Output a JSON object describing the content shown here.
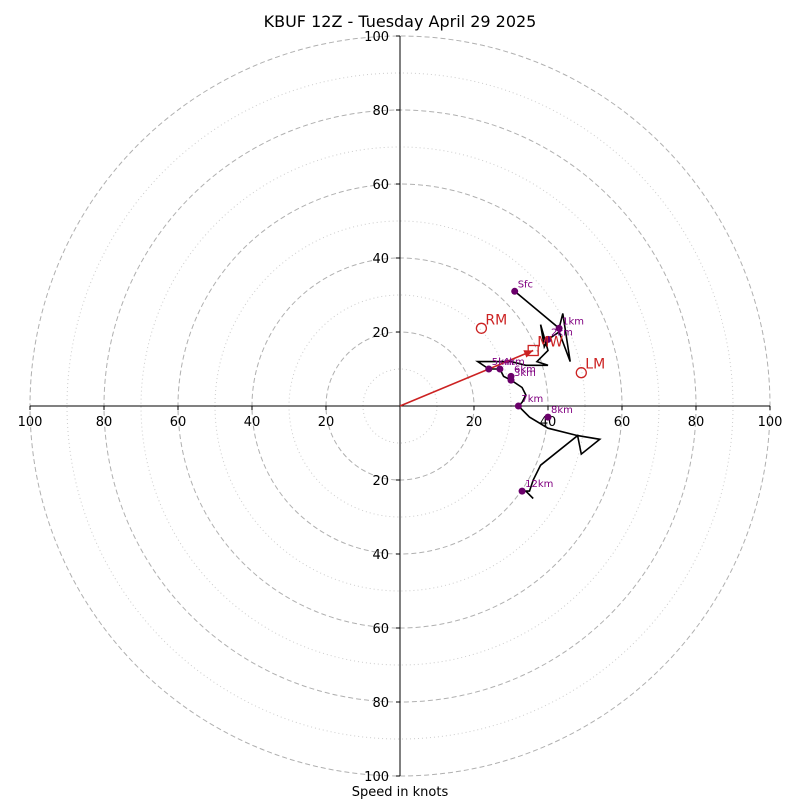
{
  "chart_data": {
    "type": "scatter",
    "title": "KBUF 12Z - Tuesday April 29 2025",
    "xlabel": "Speed in knots",
    "ylabel": "",
    "xlim": [
      -100,
      100
    ],
    "ylim": [
      -100,
      100
    ],
    "ring_major": [
      20,
      40,
      60,
      80,
      100
    ],
    "ring_minor": [
      10,
      30,
      50,
      70,
      90
    ],
    "x_ticks": [
      "100",
      "80",
      "60",
      "40",
      "20",
      "20",
      "40",
      "60",
      "80",
      "100"
    ],
    "y_ticks": [
      "100",
      "80",
      "60",
      "40",
      "20",
      "20",
      "40",
      "60",
      "80",
      "100"
    ],
    "grid": true,
    "colors": {
      "trace": "#000000",
      "height_marker": "#6a006a",
      "height_label": "#800080",
      "motion": "#cc2222",
      "grid_major": "#b0b0b0",
      "grid_minor": "#cccccc"
    },
    "trace": [
      [
        31,
        31
      ],
      [
        37,
        26
      ],
      [
        43,
        21
      ],
      [
        44,
        25
      ],
      [
        46,
        12
      ],
      [
        43,
        20
      ],
      [
        40,
        18
      ],
      [
        39,
        16
      ],
      [
        38,
        22
      ],
      [
        40,
        15
      ],
      [
        37,
        12
      ],
      [
        40,
        11
      ],
      [
        34,
        11
      ],
      [
        30,
        12
      ],
      [
        21,
        12
      ],
      [
        24,
        10
      ],
      [
        27,
        10
      ],
      [
        28,
        8
      ],
      [
        30,
        7
      ],
      [
        33,
        5
      ],
      [
        34,
        3
      ],
      [
        33,
        1
      ],
      [
        32,
        0
      ],
      [
        35,
        -3
      ],
      [
        40,
        -6
      ],
      [
        48,
        -8
      ],
      [
        54,
        -9
      ],
      [
        49,
        -13
      ],
      [
        48,
        -8
      ],
      [
        38,
        -16
      ],
      [
        36,
        -20
      ],
      [
        35,
        -23
      ],
      [
        34,
        -23
      ],
      [
        36,
        -25
      ],
      [
        34,
        -23
      ],
      [
        33,
        -23
      ]
    ],
    "height_points": [
      {
        "label": "Sfc",
        "x": 31,
        "y": 31
      },
      {
        "label": "1km",
        "x": 43,
        "y": 21
      },
      {
        "label": "2km",
        "x": 40,
        "y": 18
      },
      {
        "label": "3km",
        "x": 30,
        "y": 7
      },
      {
        "label": "4km",
        "x": 27,
        "y": 10
      },
      {
        "label": "5km",
        "x": 24,
        "y": 10
      },
      {
        "label": "6km",
        "x": 30,
        "y": 8
      },
      {
        "label": "7km",
        "x": 32,
        "y": 0
      },
      {
        "label": "8km",
        "x": 40,
        "y": -3
      },
      {
        "label": "12km",
        "x": 33,
        "y": -23
      }
    ],
    "storm_motion": [
      {
        "label": "RM",
        "x": 22,
        "y": 21,
        "marker": "circle"
      },
      {
        "label": "LM",
        "x": 49,
        "y": 9,
        "marker": "circle"
      },
      {
        "label": "MW",
        "x": 36,
        "y": 15,
        "marker": "square"
      }
    ],
    "shear_vector": {
      "from": [
        0,
        0
      ],
      "to": [
        36,
        15
      ]
    }
  }
}
